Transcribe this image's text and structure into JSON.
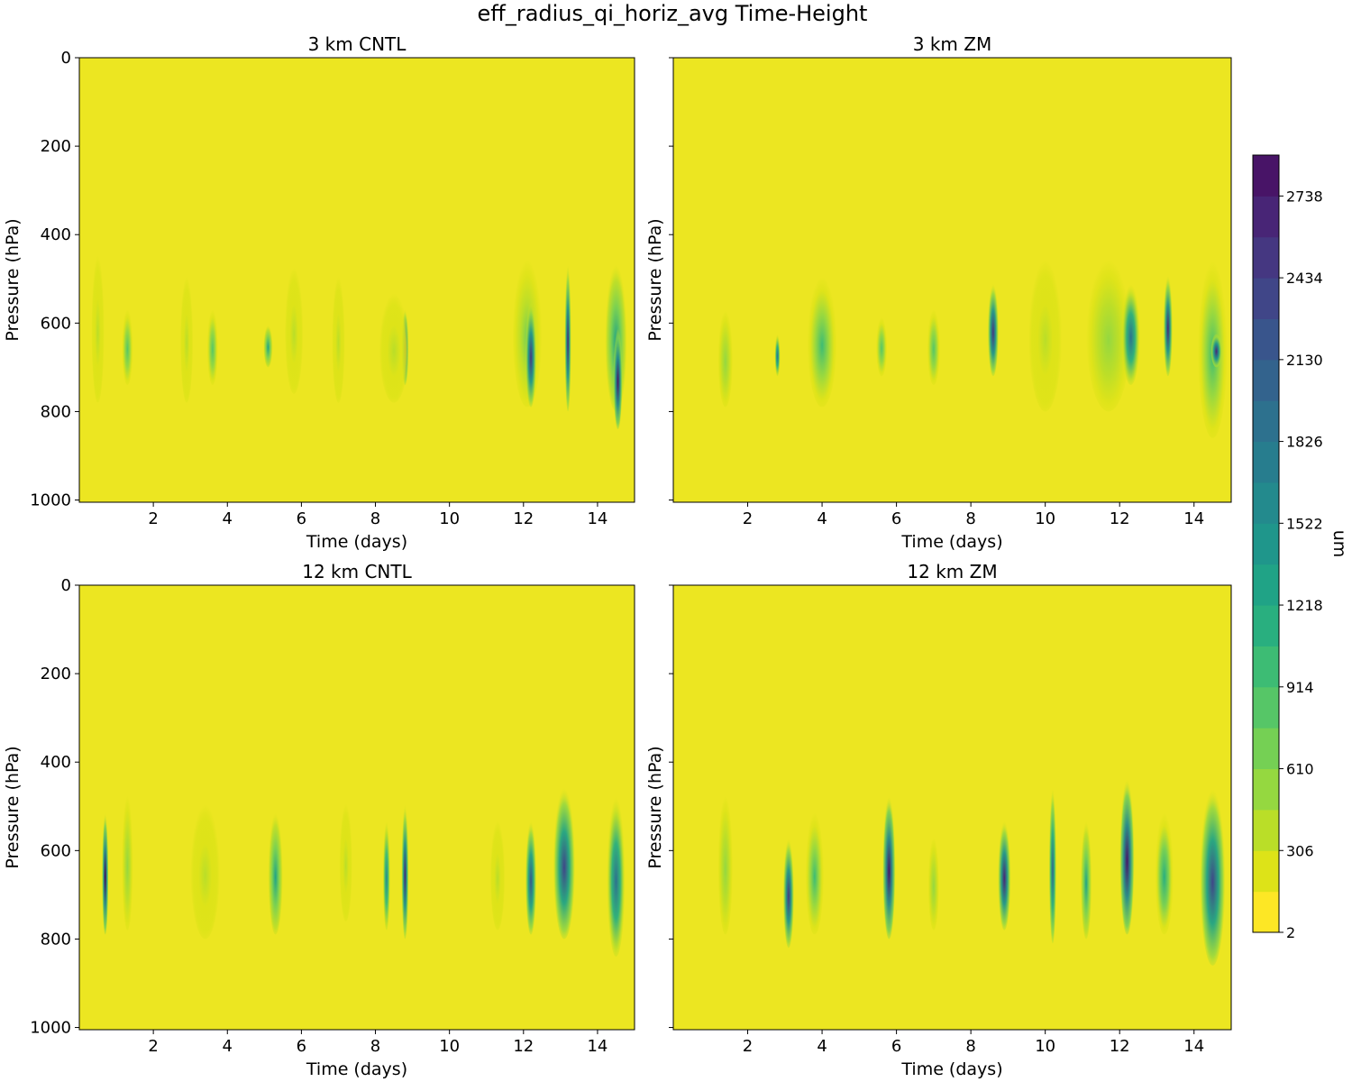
{
  "figure_title": "eff_radius_qi_horiz_avg Time-Height",
  "colors": {
    "background_fill": "#ece621",
    "viridis": [
      "#fde725",
      "#dde318",
      "#bade28",
      "#95d840",
      "#75d054",
      "#56c667",
      "#3dbc74",
      "#29af7f",
      "#20a386",
      "#1f968b",
      "#238a8d",
      "#277d8e",
      "#2d718e",
      "#33638d",
      "#39558c",
      "#404688",
      "#453781",
      "#482576",
      "#481467",
      "#440154"
    ]
  },
  "chart_data": {
    "type": "heatmap",
    "title": "eff_radius_qi_horiz_avg Time-Height",
    "x_ticks": [
      2,
      4,
      6,
      8,
      10,
      12,
      14
    ],
    "x_tick_labels": [
      "2",
      "4",
      "6",
      "8",
      "10",
      "12",
      "14"
    ],
    "y_ticks": [
      0,
      200,
      400,
      600,
      800,
      1000
    ],
    "y_tick_labels": [
      "0",
      "200",
      "400",
      "600",
      "800",
      "1000"
    ],
    "xlim": [
      0,
      15
    ],
    "ylim": [
      1005,
      0
    ],
    "xlabel": "Time (days)",
    "ylabel": "Pressure (hPa)",
    "panels": [
      {
        "title": "3 km CNTL",
        "show_ytick_labels": true,
        "cells": [
          {
            "t": 0.5,
            "w": 0.35,
            "ptop": 430,
            "pbot": 780,
            "level": 2
          },
          {
            "t": 1.3,
            "w": 0.3,
            "ptop": 560,
            "pbot": 740,
            "level": 5
          },
          {
            "t": 2.9,
            "w": 0.35,
            "ptop": 480,
            "pbot": 780,
            "level": 2
          },
          {
            "t": 3.6,
            "w": 0.3,
            "ptop": 560,
            "pbot": 740,
            "level": 5
          },
          {
            "t": 5.1,
            "w": 0.25,
            "ptop": 600,
            "pbot": 700,
            "level": 8
          },
          {
            "t": 5.8,
            "w": 0.5,
            "ptop": 460,
            "pbot": 760,
            "level": 2
          },
          {
            "t": 7.0,
            "w": 0.35,
            "ptop": 480,
            "pbot": 780,
            "level": 2
          },
          {
            "t": 8.8,
            "w": 0.2,
            "ptop": 560,
            "pbot": 740,
            "level": 16
          },
          {
            "t": 8.5,
            "w": 0.8,
            "ptop": 520,
            "pbot": 780,
            "level": 2
          },
          {
            "t": 12.1,
            "w": 0.8,
            "ptop": 440,
            "pbot": 790,
            "level": 4
          },
          {
            "t": 12.2,
            "w": 0.3,
            "ptop": 540,
            "pbot": 790,
            "level": 16
          },
          {
            "t": 13.2,
            "w": 0.18,
            "ptop": 450,
            "pbot": 800,
            "level": 17
          },
          {
            "t": 14.5,
            "w": 0.6,
            "ptop": 450,
            "pbot": 800,
            "level": 8
          },
          {
            "t": 14.55,
            "w": 0.25,
            "ptop": 600,
            "pbot": 840,
            "level": 18
          }
        ]
      },
      {
        "title": "3 km ZM",
        "show_ytick_labels": false,
        "cells": [
          {
            "t": 1.4,
            "w": 0.4,
            "ptop": 560,
            "pbot": 790,
            "level": 3
          },
          {
            "t": 2.8,
            "w": 0.15,
            "ptop": 620,
            "pbot": 720,
            "level": 12
          },
          {
            "t": 4.0,
            "w": 0.8,
            "ptop": 480,
            "pbot": 790,
            "level": 6
          },
          {
            "t": 5.6,
            "w": 0.3,
            "ptop": 580,
            "pbot": 720,
            "level": 5
          },
          {
            "t": 7.0,
            "w": 0.35,
            "ptop": 560,
            "pbot": 740,
            "level": 5
          },
          {
            "t": 8.6,
            "w": 0.3,
            "ptop": 500,
            "pbot": 720,
            "level": 16
          },
          {
            "t": 10.0,
            "w": 0.9,
            "ptop": 440,
            "pbot": 800,
            "level": 2
          },
          {
            "t": 11.7,
            "w": 1.2,
            "ptop": 440,
            "pbot": 800,
            "level": 3
          },
          {
            "t": 12.3,
            "w": 0.5,
            "ptop": 500,
            "pbot": 740,
            "level": 12
          },
          {
            "t": 13.3,
            "w": 0.25,
            "ptop": 480,
            "pbot": 720,
            "level": 17
          },
          {
            "t": 14.5,
            "w": 0.8,
            "ptop": 440,
            "pbot": 860,
            "level": 6
          },
          {
            "t": 14.6,
            "w": 0.3,
            "ptop": 620,
            "pbot": 700,
            "level": 17
          }
        ]
      },
      {
        "title": "12 km CNTL",
        "show_ytick_labels": true,
        "cells": [
          {
            "t": 0.7,
            "w": 0.18,
            "ptop": 500,
            "pbot": 790,
            "level": 19
          },
          {
            "t": 1.3,
            "w": 0.3,
            "ptop": 460,
            "pbot": 780,
            "level": 3
          },
          {
            "t": 3.4,
            "w": 0.8,
            "ptop": 480,
            "pbot": 800,
            "level": 2
          },
          {
            "t": 5.3,
            "w": 0.4,
            "ptop": 500,
            "pbot": 790,
            "level": 8
          },
          {
            "t": 7.2,
            "w": 0.35,
            "ptop": 480,
            "pbot": 760,
            "level": 2
          },
          {
            "t": 8.3,
            "w": 0.2,
            "ptop": 520,
            "pbot": 780,
            "level": 10
          },
          {
            "t": 8.8,
            "w": 0.2,
            "ptop": 480,
            "pbot": 800,
            "level": 17
          },
          {
            "t": 11.3,
            "w": 0.4,
            "ptop": 520,
            "pbot": 780,
            "level": 2
          },
          {
            "t": 12.2,
            "w": 0.3,
            "ptop": 520,
            "pbot": 790,
            "level": 14
          },
          {
            "t": 13.1,
            "w": 0.6,
            "ptop": 440,
            "pbot": 800,
            "level": 15
          },
          {
            "t": 14.5,
            "w": 0.5,
            "ptop": 460,
            "pbot": 840,
            "level": 12
          }
        ]
      },
      {
        "title": "12 km ZM",
        "show_ytick_labels": false,
        "cells": [
          {
            "t": 1.4,
            "w": 0.4,
            "ptop": 460,
            "pbot": 790,
            "level": 3
          },
          {
            "t": 3.1,
            "w": 0.3,
            "ptop": 560,
            "pbot": 820,
            "level": 16
          },
          {
            "t": 3.8,
            "w": 0.5,
            "ptop": 500,
            "pbot": 790,
            "level": 6
          },
          {
            "t": 5.8,
            "w": 0.35,
            "ptop": 460,
            "pbot": 800,
            "level": 18
          },
          {
            "t": 7.0,
            "w": 0.3,
            "ptop": 560,
            "pbot": 780,
            "level": 3
          },
          {
            "t": 8.9,
            "w": 0.35,
            "ptop": 520,
            "pbot": 780,
            "level": 17
          },
          {
            "t": 10.2,
            "w": 0.2,
            "ptop": 440,
            "pbot": 810,
            "level": 13
          },
          {
            "t": 11.1,
            "w": 0.3,
            "ptop": 520,
            "pbot": 800,
            "level": 8
          },
          {
            "t": 12.2,
            "w": 0.4,
            "ptop": 420,
            "pbot": 790,
            "level": 18
          },
          {
            "t": 13.2,
            "w": 0.5,
            "ptop": 500,
            "pbot": 790,
            "level": 7
          },
          {
            "t": 14.5,
            "w": 0.7,
            "ptop": 440,
            "pbot": 860,
            "level": 15
          }
        ]
      }
    ],
    "colorbar": {
      "label": "um",
      "min": 2,
      "max": 2890,
      "levels": 19,
      "ticks": [
        2,
        306,
        610,
        914,
        1218,
        1522,
        1826,
        2130,
        2434,
        2738
      ],
      "tick_labels": [
        "2",
        "306",
        "610",
        "914",
        "1218",
        "1522",
        "1826",
        "2130",
        "2434",
        "2738"
      ]
    }
  }
}
